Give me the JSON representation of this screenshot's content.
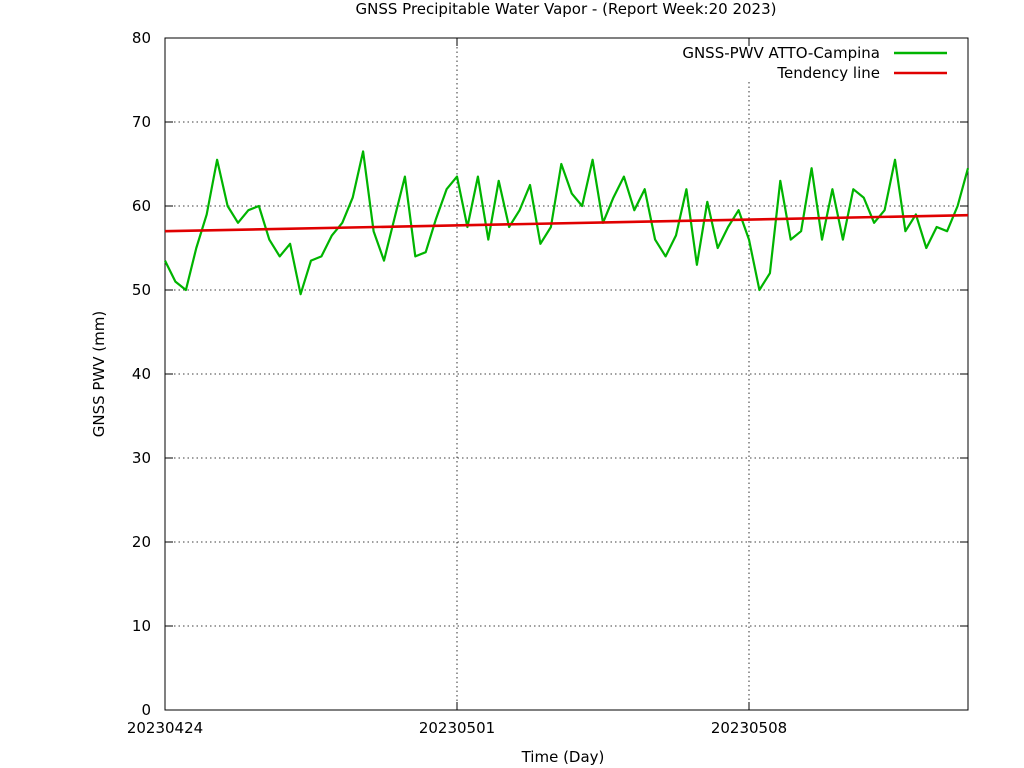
{
  "chart_data": {
    "type": "line",
    "title": "GNSS Precipitable Water Vapor - (Report Week:20  2023)",
    "xlabel": "Time (Day)",
    "ylabel": "GNSS PWV (mm)",
    "xlim": [
      "2023-04-24",
      "2023-05-13T06:00"
    ],
    "ylim": [
      0,
      80
    ],
    "yticks": [
      0,
      10,
      20,
      30,
      40,
      50,
      60,
      70,
      80
    ],
    "xticks": [
      {
        "date": "2023-04-24",
        "label": "20230424"
      },
      {
        "date": "2023-05-01",
        "label": "20230501"
      },
      {
        "date": "2023-05-08",
        "label": "20230508"
      }
    ],
    "grid": true,
    "legend_position": "top-right",
    "series": [
      {
        "name": "GNSS-PWV ATTO-Campina",
        "color": "#00b400",
        "x": [
          "2023-04-24T00:00",
          "2023-04-24T06:00",
          "2023-04-24T12:00",
          "2023-04-24T18:00",
          "2023-04-25T00:00",
          "2023-04-25T06:00",
          "2023-04-25T12:00",
          "2023-04-25T18:00",
          "2023-04-26T00:00",
          "2023-04-26T06:00",
          "2023-04-26T12:00",
          "2023-04-26T18:00",
          "2023-04-27T00:00",
          "2023-04-27T06:00",
          "2023-04-27T12:00",
          "2023-04-27T18:00",
          "2023-04-28T00:00",
          "2023-04-28T06:00",
          "2023-04-28T12:00",
          "2023-04-28T18:00",
          "2023-04-29T00:00",
          "2023-04-29T06:00",
          "2023-04-29T12:00",
          "2023-04-29T18:00",
          "2023-04-30T00:00",
          "2023-04-30T06:00",
          "2023-04-30T12:00",
          "2023-04-30T18:00",
          "2023-05-01T00:00",
          "2023-05-01T06:00",
          "2023-05-01T12:00",
          "2023-05-01T18:00",
          "2023-05-02T00:00",
          "2023-05-02T06:00",
          "2023-05-02T12:00",
          "2023-05-02T18:00",
          "2023-05-03T00:00",
          "2023-05-03T06:00",
          "2023-05-03T12:00",
          "2023-05-03T18:00",
          "2023-05-04T00:00",
          "2023-05-04T06:00",
          "2023-05-04T12:00",
          "2023-05-04T18:00",
          "2023-05-05T00:00",
          "2023-05-05T06:00",
          "2023-05-05T12:00",
          "2023-05-05T18:00",
          "2023-05-06T00:00",
          "2023-05-06T06:00",
          "2023-05-06T12:00",
          "2023-05-06T18:00",
          "2023-05-07T00:00",
          "2023-05-07T06:00",
          "2023-05-07T12:00",
          "2023-05-07T18:00",
          "2023-05-08T00:00",
          "2023-05-08T06:00",
          "2023-05-08T12:00",
          "2023-05-08T18:00",
          "2023-05-09T00:00",
          "2023-05-09T06:00",
          "2023-05-09T12:00",
          "2023-05-09T18:00",
          "2023-05-10T00:00",
          "2023-05-10T06:00",
          "2023-05-10T12:00",
          "2023-05-10T18:00",
          "2023-05-11T00:00",
          "2023-05-11T06:00",
          "2023-05-11T12:00",
          "2023-05-11T18:00",
          "2023-05-12T00:00",
          "2023-05-12T06:00",
          "2023-05-12T12:00",
          "2023-05-12T18:00",
          "2023-05-13T00:00",
          "2023-05-13T06:00"
        ],
        "values": [
          53.5,
          51.0,
          50.0,
          55.0,
          59.0,
          65.5,
          60.0,
          58.0,
          59.5,
          60.0,
          56.0,
          54.0,
          55.5,
          49.5,
          53.5,
          54.0,
          56.5,
          58.0,
          61.0,
          66.5,
          57.0,
          53.5,
          58.5,
          63.5,
          54.0,
          54.5,
          58.5,
          62.0,
          63.5,
          57.5,
          63.5,
          56.0,
          63.0,
          57.5,
          59.5,
          62.5,
          55.5,
          57.5,
          65.0,
          61.5,
          60.0,
          65.5,
          58.0,
          61.0,
          63.5,
          59.5,
          62.0,
          56.0,
          54.0,
          56.5,
          62.0,
          53.0,
          60.5,
          55.0,
          57.5,
          59.5,
          56.0,
          50.0,
          52.0,
          63.0,
          56.0,
          57.0,
          64.5,
          56.0,
          62.0,
          56.0,
          62.0,
          61.0,
          58.0,
          59.5,
          65.5,
          57.0,
          59.0,
          55.0,
          57.5,
          57.0,
          60.0,
          64.5
        ]
      },
      {
        "name": "Tendency line",
        "color": "#e00000",
        "x": [
          "2023-04-24T00:00",
          "2023-05-13T06:00"
        ],
        "values": [
          57.0,
          58.9
        ]
      }
    ]
  }
}
